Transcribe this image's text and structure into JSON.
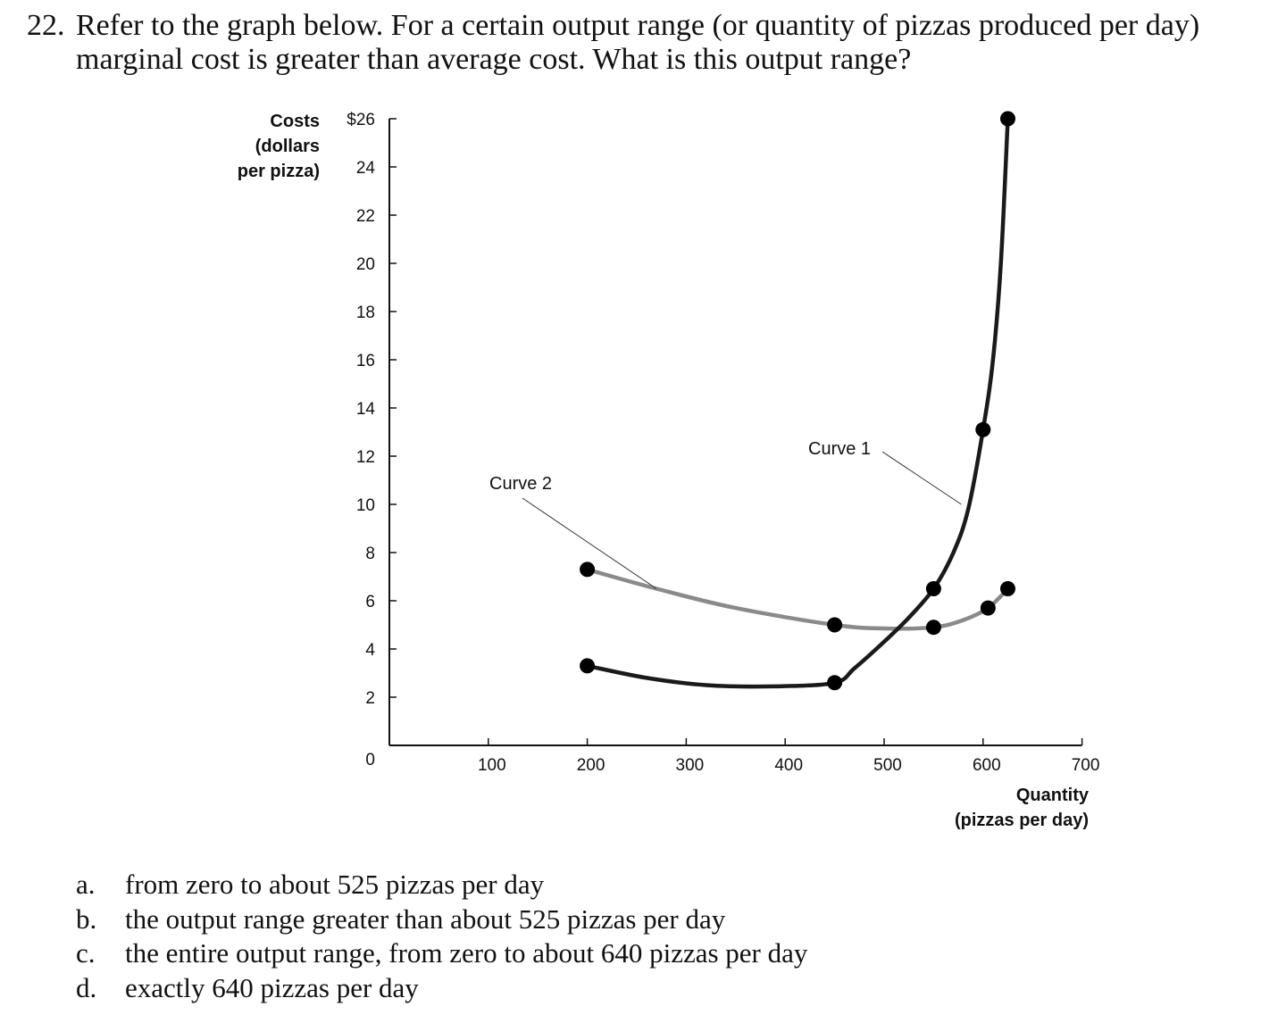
{
  "question": {
    "number": "22.",
    "line1": "Refer to the graph below. For a certain output range (or quantity of pizzas produced per day)",
    "line2": "marginal cost is greater than average cost. What is this output range?"
  },
  "chart_data": {
    "type": "line",
    "y_axis_title_lines": [
      "Costs",
      "(dollars",
      "per pizza)"
    ],
    "x_axis_title_lines": [
      "Quantity",
      "(pizzas per day)"
    ],
    "y_ticks": [
      0,
      2,
      4,
      6,
      8,
      10,
      12,
      14,
      16,
      18,
      20,
      22,
      24,
      26
    ],
    "y_tick_labels": [
      "0",
      "2",
      "4",
      "6",
      "8",
      "10",
      "12",
      "14",
      "16",
      "18",
      "20",
      "22",
      "24",
      "$26"
    ],
    "x_ticks": [
      100,
      200,
      300,
      400,
      500,
      600,
      700
    ],
    "x_tick_labels": [
      "100",
      "200",
      "300",
      "400",
      "500",
      "600",
      "700"
    ],
    "xlim": [
      0,
      700
    ],
    "ylim": [
      0,
      26
    ],
    "grid": false,
    "series": [
      {
        "name": "Curve 1",
        "color": "#1a1a1a",
        "markers": [
          [
            200,
            3.3
          ],
          [
            450,
            2.6
          ],
          [
            550,
            6.5
          ],
          [
            600,
            13.1
          ],
          [
            625,
            26
          ]
        ],
        "curve": [
          [
            200,
            3.3
          ],
          [
            260,
            2.8
          ],
          [
            320,
            2.5
          ],
          [
            390,
            2.45
          ],
          [
            450,
            2.6
          ],
          [
            470,
            3.2
          ],
          [
            500,
            4.3
          ],
          [
            525,
            5.3
          ],
          [
            550,
            6.5
          ],
          [
            570,
            8.0
          ],
          [
            585,
            9.8
          ],
          [
            600,
            13.1
          ],
          [
            610,
            16.0
          ],
          [
            618,
            20.0
          ],
          [
            625,
            26
          ]
        ]
      },
      {
        "name": "Curve 2",
        "color": "#8a8a8a",
        "markers": [
          [
            200,
            7.3
          ],
          [
            450,
            5.0
          ],
          [
            550,
            4.9
          ],
          [
            605,
            5.7
          ],
          [
            625,
            6.5
          ]
        ],
        "curve": [
          [
            200,
            7.3
          ],
          [
            270,
            6.5
          ],
          [
            350,
            5.7
          ],
          [
            450,
            5.0
          ],
          [
            500,
            4.85
          ],
          [
            550,
            4.9
          ],
          [
            580,
            5.2
          ],
          [
            605,
            5.7
          ],
          [
            625,
            6.5
          ]
        ]
      }
    ],
    "annotations": [
      {
        "text": "Curve 1",
        "target_series": "Curve 1"
      },
      {
        "text": "Curve 2",
        "target_series": "Curve 2"
      }
    ]
  },
  "answers": [
    {
      "letter": "a.",
      "text": "from zero to about 525 pizzas per day"
    },
    {
      "letter": "b.",
      "text": "the output range greater than about 525 pizzas per day"
    },
    {
      "letter": "c.",
      "text": "the entire output range, from zero to about 640 pizzas per day"
    },
    {
      "letter": "d.",
      "text": "exactly 640 pizzas per day"
    }
  ]
}
